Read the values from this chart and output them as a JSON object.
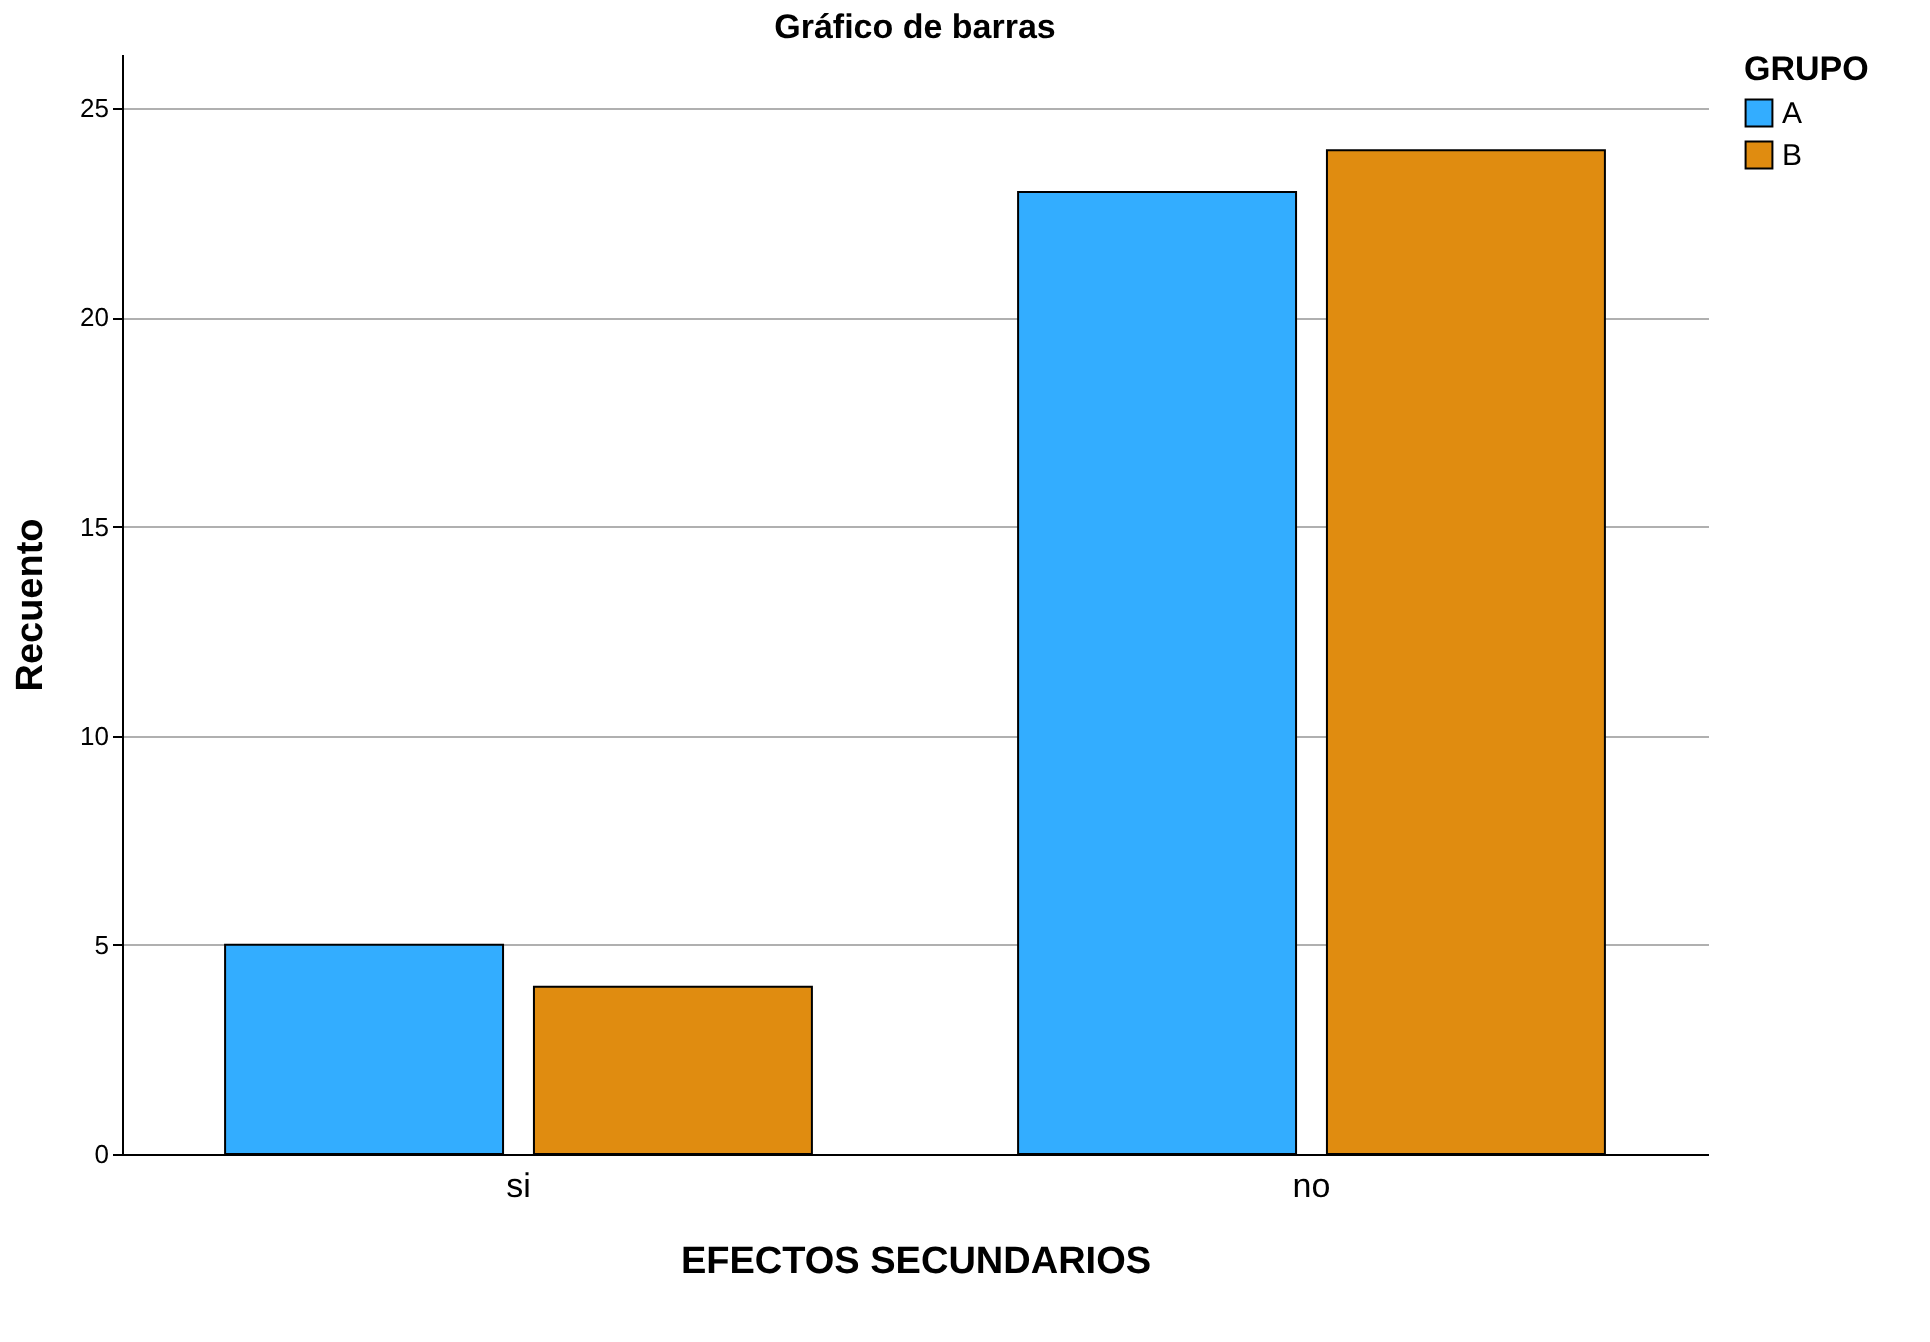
{
  "chart_data": {
    "type": "bar",
    "title": "Gráfico de barras",
    "xlabel": "EFECTOS SECUNDARIOS",
    "ylabel": "Recuento",
    "legend_title": "GRUPO",
    "categories": [
      "si",
      "no"
    ],
    "series": [
      {
        "name": "A",
        "color": "#33adff",
        "values": [
          5,
          23
        ]
      },
      {
        "name": "B",
        "color": "#e08c10",
        "values": [
          4,
          24
        ]
      }
    ],
    "ylim": [
      0,
      26.3
    ],
    "yticks": [
      0,
      5,
      10,
      15,
      20,
      25
    ],
    "grid": "y",
    "legend": "top right"
  }
}
